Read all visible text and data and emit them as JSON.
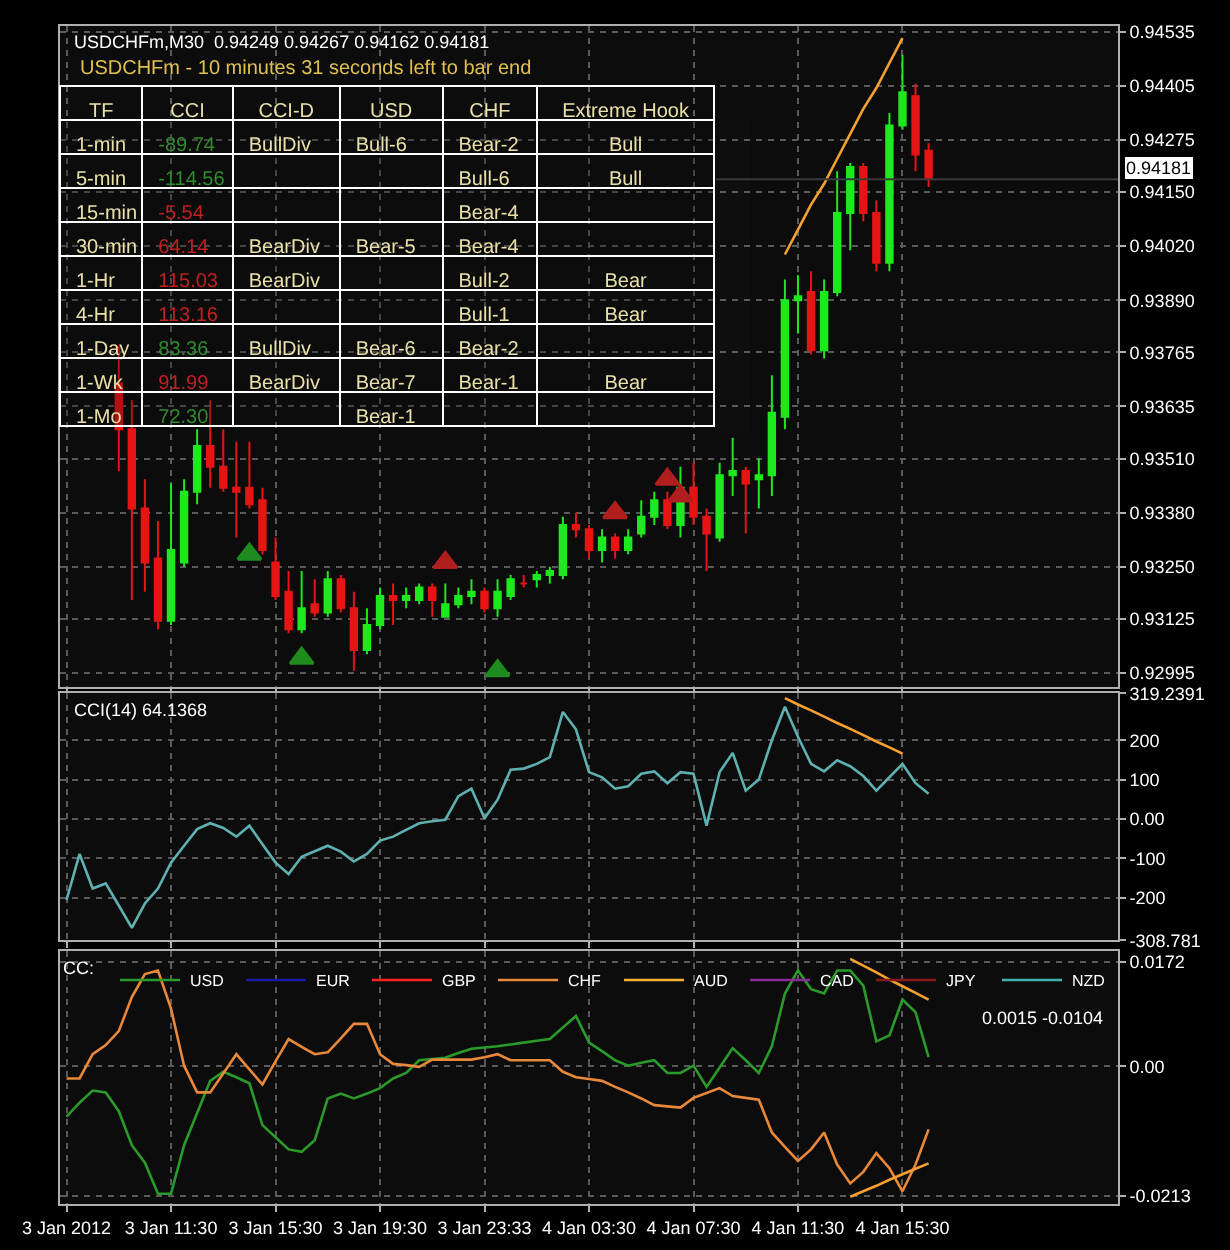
{
  "chart_data": [
    {
      "type": "candlestick",
      "title": "USDCHFm,M30  0.94249 0.94267 0.94162 0.94181",
      "categories": [
        "3 Jan 2012",
        null,
        null,
        null,
        null,
        null,
        null,
        null,
        "3 Jan 11:30",
        null,
        null,
        null,
        null,
        null,
        null,
        null,
        "3 Jan 15:30",
        null,
        null,
        null,
        null,
        null,
        null,
        null,
        "3 Jan 19:30",
        null,
        null,
        null,
        null,
        null,
        null,
        null,
        "3 Jan 23:33",
        null,
        null,
        null,
        null,
        null,
        null,
        null,
        "4 Jan 03:30",
        null,
        null,
        null,
        null,
        null,
        null,
        null,
        "4 Jan 07:30",
        null,
        null,
        null,
        null,
        null,
        null,
        null,
        "4 Jan 11:30",
        null,
        null,
        null,
        null,
        null,
        null,
        null,
        "4 Jan 15:30",
        null,
        null,
        null,
        null,
        null,
        null,
        null,
        null,
        null,
        null,
        null,
        null,
        null,
        null,
        null,
        null
      ],
      "ohlc": [
        null,
        null,
        null,
        null,
        [
          0.9369,
          0.9378,
          0.9348,
          0.9358
        ],
        [
          0.9358,
          0.9365,
          0.9317,
          0.9339
        ],
        [
          0.9339,
          0.9346,
          0.9319,
          0.9326
        ],
        [
          0.9327,
          0.9336,
          0.931,
          0.9312
        ],
        [
          0.9312,
          0.9345,
          0.9311,
          0.9329
        ],
        [
          0.9326,
          0.9346,
          0.9325,
          0.9343
        ],
        [
          0.9343,
          0.9358,
          0.934,
          0.9354
        ],
        [
          0.9354,
          0.9365,
          0.9344,
          0.9349
        ],
        [
          0.9349,
          0.9358,
          0.9343,
          0.9344
        ],
        [
          0.9344,
          0.9355,
          0.9332,
          0.9343
        ],
        [
          0.9344,
          0.9355,
          0.9339,
          0.934
        ],
        [
          0.9341,
          0.9344,
          0.9328,
          0.9329
        ],
        [
          0.9326,
          0.9332,
          0.9317,
          0.9318
        ],
        [
          0.9319,
          0.9324,
          0.9309,
          0.931
        ],
        [
          0.931,
          0.9324,
          0.9309,
          0.9315
        ],
        [
          0.9316,
          0.9322,
          0.9313,
          0.9314
        ],
        [
          0.9314,
          0.9324,
          0.9313,
          0.9322
        ],
        [
          0.9322,
          0.9323,
          0.9314,
          0.9315
        ],
        [
          0.9315,
          0.9319,
          0.93,
          0.9305
        ],
        [
          0.9305,
          0.9315,
          0.9304,
          0.9311
        ],
        [
          0.9311,
          0.932,
          0.931,
          0.9318
        ],
        [
          0.9318,
          0.9321,
          0.9311,
          0.9317
        ],
        [
          0.9317,
          0.932,
          0.9315,
          0.9318
        ],
        [
          0.9317,
          0.9321,
          0.9316,
          0.932
        ],
        [
          0.932,
          0.9321,
          0.9313,
          0.9317
        ],
        [
          0.9313,
          0.9321,
          0.9313,
          0.9316
        ],
        [
          0.9316,
          0.932,
          0.9315,
          0.9318
        ],
        [
          0.9318,
          0.9322,
          0.9316,
          0.9319
        ],
        [
          0.9319,
          0.932,
          0.9314,
          0.9315
        ],
        [
          0.9315,
          0.9322,
          0.9313,
          0.9319
        ],
        [
          0.9318,
          0.9323,
          0.9317,
          0.9322
        ],
        [
          0.9321,
          0.9323,
          0.932,
          0.9321
        ],
        [
          0.9322,
          0.9324,
          0.932,
          0.9323
        ],
        [
          0.9323,
          0.9325,
          0.9321,
          0.9324
        ],
        [
          0.9323,
          0.9337,
          0.9322,
          0.9335
        ],
        [
          0.9335,
          0.9338,
          0.9332,
          0.9334
        ],
        [
          0.9334,
          0.9335,
          0.9327,
          0.9329
        ],
        [
          0.9329,
          0.9334,
          0.9326,
          0.9332
        ],
        [
          0.9332,
          0.9333,
          0.9327,
          0.9329
        ],
        [
          0.9329,
          0.9334,
          0.9328,
          0.9332
        ],
        [
          0.9333,
          0.9341,
          0.9332,
          0.9337
        ],
        [
          0.9337,
          0.9343,
          0.9335,
          0.9341
        ],
        [
          0.9341,
          0.9343,
          0.9334,
          0.9335
        ],
        [
          0.9335,
          0.9349,
          0.9332,
          0.9344
        ],
        [
          0.9344,
          0.935,
          0.9335,
          0.9337
        ],
        [
          0.9337,
          0.9339,
          0.9324,
          0.9333
        ],
        [
          0.9332,
          0.935,
          0.9331,
          0.9347
        ],
        [
          0.9347,
          0.9356,
          0.9342,
          0.9348
        ],
        [
          0.9348,
          0.9349,
          0.9333,
          0.9345
        ],
        [
          0.9346,
          0.9351,
          0.9339,
          0.9347
        ],
        [
          0.9347,
          0.9371,
          0.9342,
          0.9362
        ],
        [
          0.9361,
          0.9394,
          0.9358,
          0.9389
        ],
        [
          0.9389,
          0.9395,
          0.9381,
          0.939
        ],
        [
          0.9391,
          0.9396,
          0.9376,
          0.9377
        ],
        [
          0.9377,
          0.9394,
          0.9375,
          0.9391
        ],
        [
          0.9391,
          0.942,
          0.939,
          0.941
        ],
        [
          0.941,
          0.9422,
          0.9401,
          0.9421
        ],
        [
          0.9421,
          0.9422,
          0.9408,
          0.941
        ],
        [
          0.941,
          0.9413,
          0.9396,
          0.9398
        ],
        [
          0.9398,
          0.9434,
          0.9396,
          0.9431
        ],
        [
          0.9431,
          0.9448,
          0.943,
          0.9439
        ],
        [
          0.9438,
          0.9441,
          0.942,
          0.9424
        ],
        [
          0.94249,
          0.94267,
          0.94162,
          0.94181
        ],
        null,
        null,
        null,
        null,
        null,
        null,
        null,
        null,
        null,
        null,
        null,
        null,
        null,
        null
      ],
      "series": [
        {
          "type": "line",
          "color": "#f5a030",
          "values": [
            null,
            null,
            null,
            null,
            null,
            null,
            null,
            null,
            null,
            null,
            null,
            null,
            null,
            null,
            null,
            null,
            null,
            null,
            null,
            null,
            null,
            null,
            null,
            null,
            null,
            null,
            null,
            null,
            null,
            null,
            null,
            null,
            null,
            null,
            null,
            null,
            null,
            null,
            null,
            null,
            null,
            null,
            null,
            null,
            null,
            null,
            null,
            null,
            null,
            null,
            null,
            null,
            null,
            null,
            null,
            0.94,
            0.9406,
            0.9412,
            0.9417,
            0.9423,
            0.9429,
            0.9435,
            0.944,
            0.9446,
            0.9452,
            null,
            null,
            null,
            null,
            null,
            null,
            null,
            null,
            null,
            null,
            null,
            null,
            null,
            null,
            null,
            null
          ]
        },
        {
          "type": "scatter",
          "marker": "triangle",
          "color": "#1e8c1e",
          "values": [
            null,
            null,
            null,
            null,
            null,
            null,
            null,
            null,
            null,
            null,
            null,
            null,
            null,
            null,
            0.9328,
            null,
            null,
            null,
            0.9303,
            null,
            null,
            null,
            null,
            null,
            null,
            null,
            null,
            null,
            null,
            null,
            null,
            null,
            null,
            0.93,
            null,
            null,
            null,
            null,
            null,
            null,
            null,
            null,
            null,
            null,
            null,
            null,
            null,
            null,
            null,
            null,
            null,
            null,
            null,
            null,
            null,
            null,
            null,
            null,
            null,
            null,
            null,
            null,
            null,
            null,
            null,
            null,
            null,
            null,
            null,
            null,
            null,
            null,
            null,
            null,
            null,
            null,
            null,
            null,
            null,
            null,
            null
          ]
        },
        {
          "type": "scatter",
          "marker": "triangle",
          "color": "#b01e1e",
          "values": [
            null,
            null,
            null,
            null,
            null,
            null,
            null,
            null,
            null,
            null,
            null,
            null,
            null,
            null,
            null,
            null,
            null,
            null,
            null,
            null,
            null,
            null,
            null,
            null,
            null,
            null,
            null,
            null,
            null,
            0.9326,
            null,
            null,
            null,
            null,
            null,
            null,
            null,
            null,
            null,
            null,
            null,
            null,
            0.9338,
            null,
            null,
            null,
            0.9346,
            0.9342,
            null,
            null,
            null,
            null,
            null,
            null,
            null,
            null,
            null,
            null,
            null,
            null,
            null,
            null,
            null,
            null,
            null,
            null,
            null,
            null,
            null,
            null,
            null,
            null,
            null,
            null,
            null,
            null,
            null,
            null,
            null,
            null,
            null
          ]
        }
      ],
      "ref_lines": [
        {
          "axis": "y",
          "value": 0.94181,
          "label": "0.94181",
          "color": "#3a3a3a"
        }
      ],
      "ylim": [
        0.9296,
        0.9455
      ],
      "yticks": [
        0.94535,
        0.94405,
        0.94275,
        {
          "value": 0.9415,
          "label": "0.94150"
        },
        {
          "value": 0.9402,
          "label": "0.94020"
        },
        {
          "value": 0.9389,
          "label": "0.93890"
        },
        0.93765,
        0.93635,
        {
          "value": 0.9351,
          "label": "0.93510"
        },
        {
          "value": 0.9338,
          "label": "0.93380"
        },
        {
          "value": 0.9325,
          "label": "0.93250"
        },
        0.93125,
        0.92995
      ],
      "grid": true,
      "tick_labels": "y"
    },
    {
      "type": "other",
      "title": "USDCHFm - 10 minutes 31 seconds left to bar end",
      "categories": [
        "TF",
        "CCI",
        "CCI-D",
        "USD",
        "CHF",
        "Extreme Hook"
      ],
      "y_categories": [
        "1-min",
        "5-min",
        "15-min",
        "30-min",
        "1-Hr",
        "4-Hr",
        "1-Day",
        "1-Wk",
        "1-Mo"
      ],
      "cell_labels": [
        [
          "-89.74",
          "BullDiv",
          "Bull-6",
          "Bear-2",
          "Bull"
        ],
        [
          "-114.56",
          null,
          null,
          "Bull-6",
          "Bull"
        ],
        [
          "-5.54",
          null,
          null,
          "Bear-4",
          null
        ],
        [
          "64.14",
          "BearDiv",
          "Bear-5",
          "Bear-4",
          null
        ],
        [
          "115.03",
          "BearDiv",
          null,
          "Bull-2",
          "Bear"
        ],
        [
          "113.16",
          null,
          null,
          "Bull-1",
          "Bear"
        ],
        [
          "83.36",
          "BullDiv",
          "Bear-6",
          "Bear-2",
          null
        ],
        [
          "91.99",
          "BearDiv",
          "Bear-7",
          "Bear-1",
          "Bear"
        ],
        [
          "72.30",
          null,
          "Bear-1",
          null,
          null
        ]
      ],
      "colors": [
        "#2e8b2e",
        "#2e8b2e",
        "#c02020",
        "#c02020",
        "#c02020",
        "#c02020",
        "#2e8b2e",
        "#c02020",
        "#2e8b2e"
      ]
    },
    {
      "type": "line",
      "title": "CCI(14) 64.1368",
      "categories": [
        "3 Jan 2012",
        null,
        null,
        null,
        null,
        null,
        null,
        null,
        "3 Jan 11:30",
        null,
        null,
        null,
        null,
        null,
        null,
        null,
        "3 Jan 15:30",
        null,
        null,
        null,
        null,
        null,
        null,
        null,
        "3 Jan 19:30",
        null,
        null,
        null,
        null,
        null,
        null,
        null,
        "3 Jan 23:33",
        null,
        null,
        null,
        null,
        null,
        null,
        null,
        "4 Jan 03:30",
        null,
        null,
        null,
        null,
        null,
        null,
        null,
        "4 Jan 07:30",
        null,
        null,
        null,
        null,
        null,
        null,
        null,
        "4 Jan 11:30",
        null,
        null,
        null,
        null,
        null,
        null,
        null,
        "4 Jan 15:30",
        null,
        null,
        null,
        null,
        null,
        null,
        null,
        null,
        null,
        null,
        null,
        null,
        null,
        null,
        null,
        null
      ],
      "series": [
        {
          "color": "#5fb0b0",
          "values": [
            -206,
            -89,
            -177,
            -164,
            -220,
            -277,
            -215,
            -177,
            -111,
            -68,
            -26,
            -11,
            -23,
            -45,
            -17,
            -64,
            -111,
            -140,
            -96,
            -82,
            -68,
            -83,
            -108,
            -89,
            -55,
            -45,
            -28,
            -11,
            -6,
            -2,
            58,
            77,
            2,
            49,
            125,
            128,
            140,
            157,
            272,
            228,
            119,
            106,
            77,
            83,
            115,
            121,
            91,
            119,
            115,
            -17,
            119,
            168,
            72,
            100,
            200,
            285,
            209,
            140,
            121,
            149,
            134,
            109,
            72,
            106,
            140,
            91,
            64,
            null,
            null,
            null,
            null,
            null,
            null,
            null,
            null,
            null,
            null,
            null,
            null,
            null,
            null
          ]
        },
        {
          "color": "#f5a030",
          "values": [
            null,
            null,
            null,
            null,
            null,
            null,
            null,
            null,
            null,
            null,
            null,
            null,
            null,
            null,
            null,
            null,
            null,
            null,
            null,
            null,
            null,
            null,
            null,
            null,
            null,
            null,
            null,
            null,
            null,
            null,
            null,
            null,
            null,
            null,
            null,
            null,
            null,
            null,
            null,
            null,
            null,
            null,
            null,
            null,
            null,
            null,
            null,
            null,
            null,
            null,
            null,
            null,
            null,
            null,
            null,
            307,
            291,
            276,
            260,
            244,
            229,
            213,
            197,
            182,
            166,
            null,
            null,
            null,
            null,
            null,
            null,
            null,
            null,
            null,
            null,
            null,
            null,
            null,
            null,
            null,
            null
          ]
        }
      ],
      "ylim": [
        -308.781,
        319.2391
      ],
      "yticks": [
        319.2391,
        200,
        100,
        {
          "value": 0,
          "label": "0.00"
        },
        -100,
        -200,
        -308.781
      ],
      "grid": true,
      "tick_labels": "y"
    },
    {
      "type": "line",
      "legend_title": "CC:",
      "legend": "top",
      "annotations": [
        "0.0015 -0.0104"
      ],
      "categories": [
        "3 Jan 2012",
        null,
        null,
        null,
        null,
        null,
        null,
        null,
        "3 Jan 11:30",
        null,
        null,
        null,
        null,
        null,
        null,
        null,
        "3 Jan 15:30",
        null,
        null,
        null,
        null,
        null,
        null,
        null,
        "3 Jan 19:30",
        null,
        null,
        null,
        null,
        null,
        null,
        null,
        "3 Jan 23:33",
        null,
        null,
        null,
        null,
        null,
        null,
        null,
        "4 Jan 03:30",
        null,
        null,
        null,
        null,
        null,
        null,
        null,
        "4 Jan 07:30",
        null,
        null,
        null,
        null,
        null,
        null,
        null,
        "4 Jan 11:30",
        null,
        null,
        null,
        null,
        null,
        null,
        null,
        "4 Jan 15:30",
        null,
        null,
        null,
        null,
        null,
        null,
        null,
        null,
        null,
        null,
        null,
        null,
        null,
        null,
        null,
        null
      ],
      "series": [
        {
          "name": "USD",
          "color": "#2a9a2a",
          "values": [
            -0.0083,
            -0.006,
            -0.004,
            -0.0043,
            -0.0074,
            -0.013,
            -0.0159,
            -0.021,
            -0.021,
            -0.013,
            -0.0077,
            -0.0024,
            -0.0009,
            -0.0018,
            -0.0028,
            -0.0097,
            -0.0117,
            -0.0137,
            -0.0141,
            -0.0122,
            -0.0053,
            -0.0045,
            -0.0053,
            -0.0045,
            -0.0036,
            -0.002,
            -0.0011,
            0.001,
            0.0012,
            0.0014,
            0.0022,
            0.0029,
            0.0031,
            0.0033,
            0.0036,
            0.0039,
            0.0042,
            0.0045,
            0.0064,
            0.0083,
            0.0039,
            0.0025,
            0.001,
            0.0001,
            0.0006,
            0.001,
            -0.0011,
            -0.0011,
            0.0001,
            -0.0034,
            -0.0002,
            0.003,
            0.001,
            -0.0011,
            0.0033,
            0.012,
            0.0158,
            0.0127,
            0.012,
            0.0158,
            0.0158,
            0.0133,
            0.0041,
            0.0051,
            0.011,
            0.0089,
            0.0015,
            null,
            null,
            null,
            null,
            null,
            null,
            null,
            null,
            null,
            null,
            null,
            null,
            null,
            null
          ]
        },
        {
          "name": "EUR",
          "color": "#1a1aa8",
          "values": [
            null,
            null,
            null,
            null,
            null,
            null,
            null,
            null,
            null,
            null,
            null,
            null,
            null,
            null,
            null,
            null,
            null,
            null,
            null,
            null,
            null,
            null,
            null,
            null,
            null,
            null,
            null,
            null,
            null,
            null,
            null,
            null,
            null,
            null,
            null,
            null,
            null,
            null,
            null,
            null,
            null,
            null,
            null,
            null,
            null,
            null,
            null,
            null,
            null,
            null,
            null,
            null,
            null,
            null,
            null,
            null,
            null,
            null,
            null,
            null,
            null,
            null,
            null,
            null,
            null,
            null,
            null,
            null,
            null,
            null,
            null,
            null,
            null,
            null,
            null,
            null,
            null,
            null,
            null,
            null,
            null
          ]
        },
        {
          "name": "GBP",
          "color": "#ff2020",
          "values": [
            null,
            null,
            null,
            null,
            null,
            null,
            null,
            null,
            null,
            null,
            null,
            null,
            null,
            null,
            null,
            null,
            null,
            null,
            null,
            null,
            null,
            null,
            null,
            null,
            null,
            null,
            null,
            null,
            null,
            null,
            null,
            null,
            null,
            null,
            null,
            null,
            null,
            null,
            null,
            null,
            null,
            null,
            null,
            null,
            null,
            null,
            null,
            null,
            null,
            null,
            null,
            null,
            null,
            null,
            null,
            null,
            null,
            null,
            null,
            null,
            null,
            null,
            null,
            null,
            null,
            null,
            null,
            null,
            null,
            null,
            null,
            null,
            null,
            null,
            null,
            null,
            null,
            null,
            null,
            null,
            null
          ]
        },
        {
          "name": "CHF",
          "color": "#e8883a",
          "values": [
            -0.002,
            -0.002,
            0.002,
            0.0035,
            0.0058,
            0.0114,
            0.0152,
            0.0158,
            0.0095,
            0.0001,
            -0.0043,
            -0.0043,
            -0.0012,
            0.002,
            -0.0005,
            -0.003,
            0.0008,
            0.0045,
            0.0032,
            0.002,
            0.0023,
            0.0046,
            0.007,
            0.007,
            0.002,
            0.0004,
            0.0002,
            -0.0001,
            0.0011,
            0.0011,
            0.0011,
            0.0011,
            0.0015,
            0.002,
            0.001,
            0.001,
            0.001,
            0.001,
            -0.0009,
            -0.0018,
            -0.0021,
            -0.0024,
            -0.0034,
            -0.0043,
            -0.0053,
            -0.0064,
            -0.0066,
            -0.0068,
            -0.0052,
            -0.0044,
            -0.0036,
            -0.0049,
            -0.0052,
            -0.0055,
            -0.0109,
            -0.0133,
            -0.0156,
            -0.0137,
            -0.0109,
            -0.0162,
            -0.0193,
            -0.0174,
            -0.0143,
            -0.0168,
            -0.0206,
            -0.0162,
            -0.0104,
            null,
            null,
            null,
            null,
            null,
            null,
            null,
            null,
            null,
            null,
            null,
            null,
            null,
            null
          ]
        },
        {
          "name": "AUD",
          "color": "#f5b030",
          "values": [
            null,
            null,
            null,
            null,
            null,
            null,
            null,
            null,
            null,
            null,
            null,
            null,
            null,
            null,
            null,
            null,
            null,
            null,
            null,
            null,
            null,
            null,
            null,
            null,
            null,
            null,
            null,
            null,
            null,
            null,
            null,
            null,
            null,
            null,
            null,
            null,
            null,
            null,
            null,
            null,
            null,
            null,
            null,
            null,
            null,
            null,
            null,
            null,
            null,
            null,
            null,
            null,
            null,
            null,
            null,
            null,
            null,
            null,
            null,
            null,
            null,
            null,
            null,
            null,
            null,
            null,
            null,
            null,
            null,
            null,
            null,
            null,
            null,
            null,
            null,
            null,
            null,
            null,
            null,
            null,
            null
          ]
        },
        {
          "name": "CAD",
          "color": "#8a2a9a",
          "values": [
            null,
            null,
            null,
            null,
            null,
            null,
            null,
            null,
            null,
            null,
            null,
            null,
            null,
            null,
            null,
            null,
            null,
            null,
            null,
            null,
            null,
            null,
            null,
            null,
            null,
            null,
            null,
            null,
            null,
            null,
            null,
            null,
            null,
            null,
            null,
            null,
            null,
            null,
            null,
            null,
            null,
            null,
            null,
            null,
            null,
            null,
            null,
            null,
            null,
            null,
            null,
            null,
            null,
            null,
            null,
            null,
            null,
            null,
            null,
            null,
            null,
            null,
            null,
            null,
            null,
            null,
            null,
            null,
            null,
            null,
            null,
            null,
            null,
            null,
            null,
            null,
            null,
            null,
            null,
            null,
            null
          ]
        },
        {
          "name": "JPY",
          "color": "#8a1a1a",
          "values": [
            null,
            null,
            null,
            null,
            null,
            null,
            null,
            null,
            null,
            null,
            null,
            null,
            null,
            null,
            null,
            null,
            null,
            null,
            null,
            null,
            null,
            null,
            null,
            null,
            null,
            null,
            null,
            null,
            null,
            null,
            null,
            null,
            null,
            null,
            null,
            null,
            null,
            null,
            null,
            null,
            null,
            null,
            null,
            null,
            null,
            null,
            null,
            null,
            null,
            null,
            null,
            null,
            null,
            null,
            null,
            null,
            null,
            null,
            null,
            null,
            null,
            null,
            null,
            null,
            null,
            null,
            null,
            null,
            null,
            null,
            null,
            null,
            null,
            null,
            null,
            null,
            null,
            null,
            null,
            null,
            null
          ]
        },
        {
          "name": "NZD",
          "color": "#40b0b0",
          "values": [
            null,
            null,
            null,
            null,
            null,
            null,
            null,
            null,
            null,
            null,
            null,
            null,
            null,
            null,
            null,
            null,
            null,
            null,
            null,
            null,
            null,
            null,
            null,
            null,
            null,
            null,
            null,
            null,
            null,
            null,
            null,
            null,
            null,
            null,
            null,
            null,
            null,
            null,
            null,
            null,
            null,
            null,
            null,
            null,
            null,
            null,
            null,
            null,
            null,
            null,
            null,
            null,
            null,
            null,
            null,
            null,
            null,
            null,
            null,
            null,
            null,
            null,
            null,
            null,
            null,
            null,
            null,
            null,
            null,
            null,
            null,
            null,
            null,
            null,
            null,
            null,
            null,
            null,
            null,
            null,
            null
          ]
        },
        {
          "color": "#f5a030",
          "values": [
            null,
            null,
            null,
            null,
            null,
            null,
            null,
            null,
            null,
            null,
            null,
            null,
            null,
            null,
            null,
            null,
            null,
            null,
            null,
            null,
            null,
            null,
            null,
            null,
            null,
            null,
            null,
            null,
            null,
            null,
            null,
            null,
            null,
            null,
            null,
            null,
            null,
            null,
            null,
            null,
            null,
            null,
            null,
            null,
            null,
            null,
            null,
            null,
            null,
            null,
            null,
            null,
            null,
            null,
            null,
            null,
            null,
            null,
            null,
            null,
            0.0177,
            0.0166,
            0.0155,
            0.0143,
            0.0132,
            0.0121,
            0.011,
            null,
            null,
            null,
            null,
            null,
            null,
            null,
            null,
            null,
            null,
            null,
            null,
            null,
            null
          ]
        },
        {
          "color": "#f5a030",
          "values": [
            null,
            null,
            null,
            null,
            null,
            null,
            null,
            null,
            null,
            null,
            null,
            null,
            null,
            null,
            null,
            null,
            null,
            null,
            null,
            null,
            null,
            null,
            null,
            null,
            null,
            null,
            null,
            null,
            null,
            null,
            null,
            null,
            null,
            null,
            null,
            null,
            null,
            null,
            null,
            null,
            null,
            null,
            null,
            null,
            null,
            null,
            null,
            null,
            null,
            null,
            null,
            null,
            null,
            null,
            null,
            null,
            null,
            null,
            null,
            null,
            -0.0215,
            -0.0206,
            -0.0197,
            -0.0187,
            -0.0178,
            -0.0169,
            -0.016,
            null,
            null,
            null,
            null,
            null,
            null,
            null,
            null,
            null,
            null,
            null,
            null,
            null,
            null
          ]
        }
      ],
      "ylim": [
        -0.0227,
        0.019
      ],
      "yticks": [
        0.0172,
        {
          "value": 0,
          "label": "0.00"
        },
        -0.0213
      ],
      "grid": true
    }
  ]
}
